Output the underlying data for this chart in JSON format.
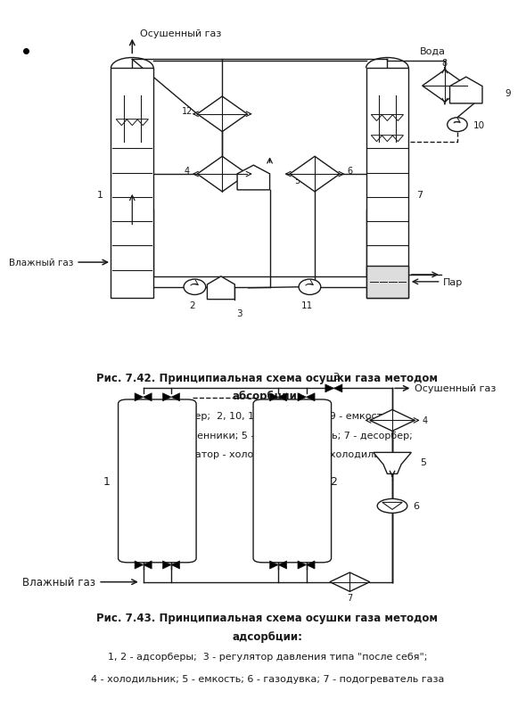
{
  "bg_color": "white",
  "line_color": "#1a1a1a",
  "fig_width": 5.61,
  "fig_height": 7.84,
  "caption1_title": "Рис. 7.42. Принципиальная схема осушки газа методом",
  "caption1_title2": "абсорбции:",
  "caption1_line1": "1 - абсорбер;  2, 10, 11 - насосы;  3, 9 - емкости;",
  "caption1_line2": "4,6 - теплообменники; 5 - выветриватель; 7 - десорбер;",
  "caption1_line3": "8 - конденсатор - холодильник;  12 - холодильник",
  "caption2_title": "Рис. 7.43. Принципиальная схема осушки газа методом",
  "caption2_title2": "адсорбции:",
  "caption2_line1": "1, 2 - адсорберы;  3 - регулятор давления типа \"после себя\";",
  "caption2_line2": "4 - холодильник; 5 - емкость; 6 - газодувка; 7 - подогреватель газа"
}
